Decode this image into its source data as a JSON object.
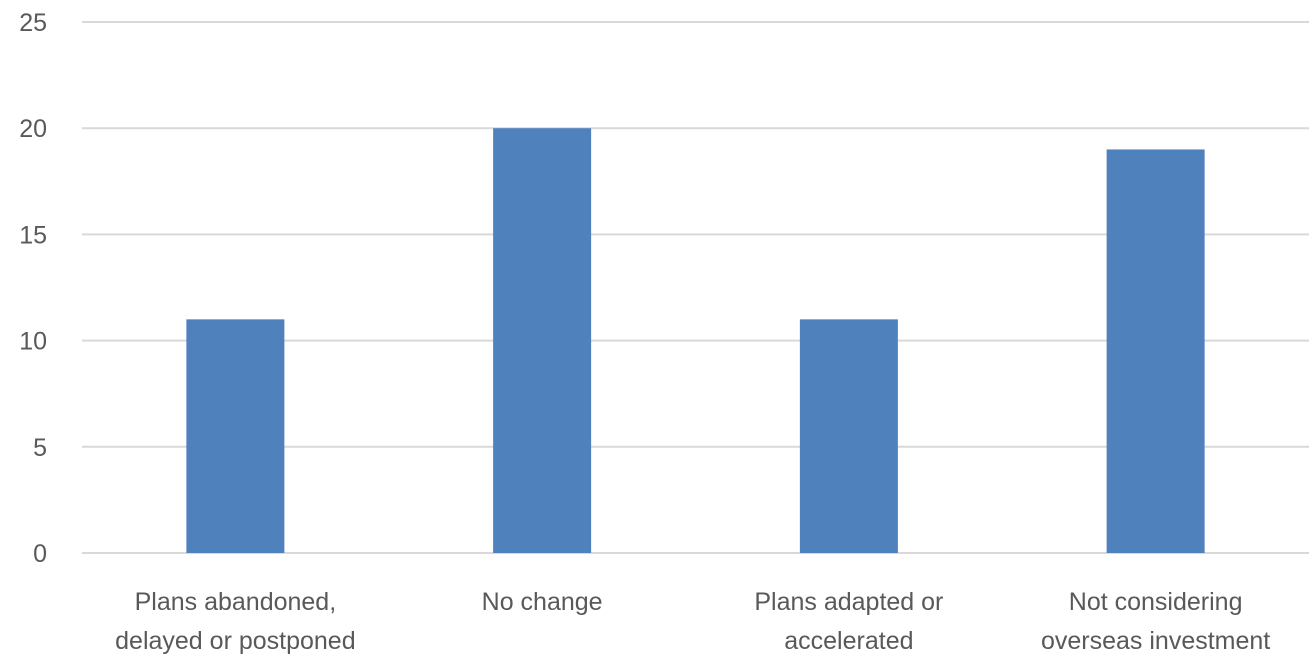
{
  "chart_data": {
    "type": "bar",
    "title": "",
    "xlabel": "",
    "ylabel": "",
    "categories": [
      [
        "Plans abandoned,",
        "delayed or postponed"
      ],
      [
        "No change"
      ],
      [
        "Plans adapted or",
        "accelerated"
      ],
      [
        "Not considering",
        "overseas investment"
      ]
    ],
    "values": [
      11,
      20,
      11,
      19
    ],
    "ylim": [
      0,
      25
    ],
    "yticks": [
      0,
      5,
      10,
      15,
      20,
      25
    ],
    "grid": true,
    "legend": "none",
    "bar_color": "#4f81bd"
  }
}
